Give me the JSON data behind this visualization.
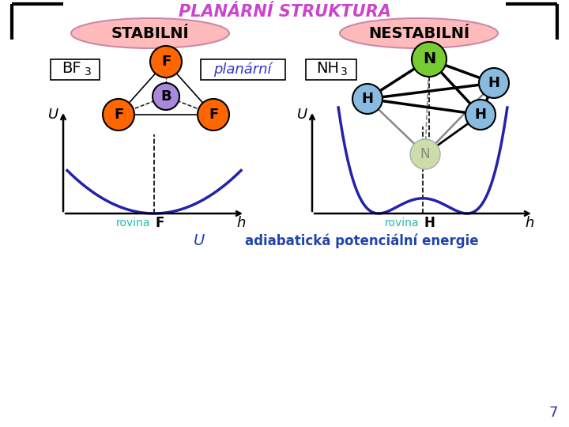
{
  "title": "PLANÁRNÍ STRUKTURA",
  "title_color": "#cc44cc",
  "background_color": "#ffffff",
  "stabilni_label": "STABILNÍ",
  "nestabilni_label": "NESTABILNÍ",
  "ellipse_color": "#ffbbbb",
  "F_color": "#ff6600",
  "B_color": "#aa88dd",
  "N_color": "#77cc33",
  "H_color": "#88bbdd",
  "N_ghost_color": "#ccddaa",
  "curve_color": "#2222aa",
  "rovina_color": "#22bbaa",
  "adiab_color": "#2244aa",
  "page_number": "7",
  "page_color": "#3333aa"
}
